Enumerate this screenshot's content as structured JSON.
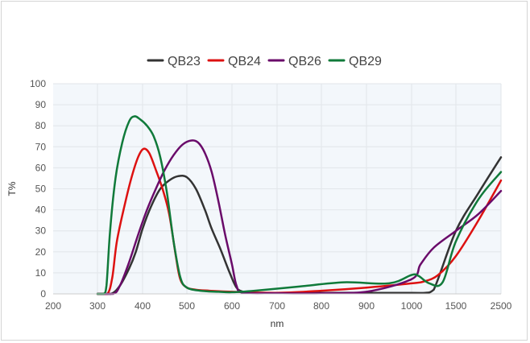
{
  "chart_data": {
    "type": "line",
    "title": "",
    "xlabel": "nm",
    "ylabel": "T%",
    "x_ticks": [
      "200",
      "300",
      "400",
      "500",
      "600",
      "700",
      "800",
      "900",
      "1000",
      "1500",
      "2500"
    ],
    "y_ticks": [
      "0",
      "10",
      "20",
      "30",
      "40",
      "50",
      "60",
      "70",
      "80",
      "90",
      "100"
    ],
    "ylim": [
      0,
      100
    ],
    "x_scale": "piecewise-linear (200–1000 in steps of 100, then 1500, 2500)",
    "grid": true,
    "legend_position": "top-center",
    "plot_background": "#f3f7fb",
    "series": [
      {
        "name": "QB23",
        "color": "#333333",
        "points": [
          [
            300,
            0
          ],
          [
            330,
            0
          ],
          [
            350,
            4
          ],
          [
            370,
            12
          ],
          [
            385,
            20
          ],
          [
            400,
            31
          ],
          [
            420,
            42
          ],
          [
            440,
            50
          ],
          [
            460,
            54
          ],
          [
            480,
            56
          ],
          [
            500,
            55.5
          ],
          [
            520,
            50
          ],
          [
            540,
            40
          ],
          [
            555,
            31
          ],
          [
            575,
            21
          ],
          [
            595,
            10
          ],
          [
            610,
            3
          ],
          [
            625,
            1
          ],
          [
            650,
            0.5
          ],
          [
            700,
            0.3
          ],
          [
            800,
            0.5
          ],
          [
            900,
            0.5
          ],
          [
            1000,
            0.5
          ],
          [
            1150,
            0.5
          ],
          [
            1250,
            2
          ],
          [
            1500,
            30
          ],
          [
            2000,
            48
          ],
          [
            2500,
            65
          ]
        ]
      },
      {
        "name": "QB24",
        "color": "#dd1111",
        "points": [
          [
            300,
            0
          ],
          [
            322,
            0
          ],
          [
            333,
            8
          ],
          [
            343,
            25
          ],
          [
            360,
            42
          ],
          [
            375,
            55
          ],
          [
            390,
            65
          ],
          [
            402,
            69
          ],
          [
            415,
            67
          ],
          [
            430,
            59
          ],
          [
            445,
            50
          ],
          [
            460,
            38
          ],
          [
            475,
            18
          ],
          [
            485,
            7
          ],
          [
            500,
            3
          ],
          [
            520,
            2
          ],
          [
            550,
            1.5
          ],
          [
            600,
            1
          ],
          [
            700,
            0.5
          ],
          [
            800,
            1.5
          ],
          [
            900,
            3
          ],
          [
            1000,
            5
          ],
          [
            1150,
            6
          ],
          [
            1300,
            9
          ],
          [
            1500,
            18
          ],
          [
            2000,
            35
          ],
          [
            2500,
            54
          ]
        ]
      },
      {
        "name": "QB26",
        "color": "#6a0b6a",
        "points": [
          [
            300,
            0
          ],
          [
            335,
            0
          ],
          [
            350,
            4
          ],
          [
            370,
            15
          ],
          [
            390,
            28
          ],
          [
            410,
            40
          ],
          [
            430,
            50
          ],
          [
            450,
            59
          ],
          [
            470,
            66
          ],
          [
            490,
            71
          ],
          [
            510,
            73
          ],
          [
            525,
            72
          ],
          [
            540,
            67
          ],
          [
            555,
            58
          ],
          [
            570,
            44
          ],
          [
            585,
            28
          ],
          [
            600,
            14
          ],
          [
            610,
            4
          ],
          [
            625,
            0.5
          ],
          [
            700,
            0.3
          ],
          [
            800,
            0.3
          ],
          [
            900,
            1
          ],
          [
            1000,
            7
          ],
          [
            1100,
            14
          ],
          [
            1250,
            22
          ],
          [
            1500,
            30
          ],
          [
            2000,
            38
          ],
          [
            2500,
            49
          ]
        ]
      },
      {
        "name": "QB29",
        "color": "#107a3a",
        "points": [
          [
            300,
            0
          ],
          [
            314,
            0
          ],
          [
            320,
            4
          ],
          [
            328,
            30
          ],
          [
            340,
            55
          ],
          [
            355,
            72
          ],
          [
            370,
            82
          ],
          [
            382,
            84.5
          ],
          [
            395,
            83
          ],
          [
            410,
            80
          ],
          [
            425,
            75
          ],
          [
            440,
            65
          ],
          [
            455,
            48
          ],
          [
            470,
            25
          ],
          [
            485,
            8
          ],
          [
            500,
            3
          ],
          [
            530,
            1.5
          ],
          [
            570,
            1
          ],
          [
            600,
            0.8
          ],
          [
            650,
            1.5
          ],
          [
            750,
            3.5
          ],
          [
            850,
            5.5
          ],
          [
            950,
            5
          ],
          [
            1000,
            9
          ],
          [
            1080,
            8.5
          ],
          [
            1200,
            5
          ],
          [
            1350,
            5.5
          ],
          [
            1500,
            25
          ],
          [
            2000,
            45
          ],
          [
            2500,
            58
          ]
        ]
      }
    ]
  }
}
